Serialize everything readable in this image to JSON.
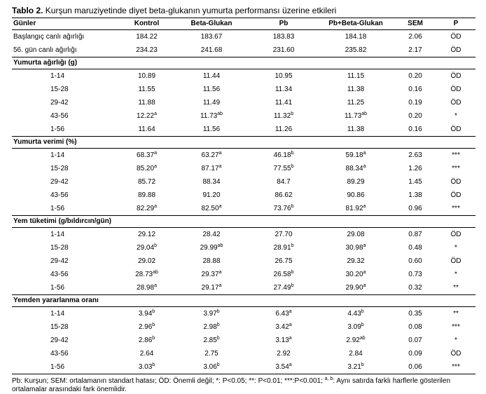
{
  "caption": {
    "bold": "Tablo 2.",
    "text": " Kurşun maruziyetinde diyet beta-glukanın yumurta performansı üzerine etkileri"
  },
  "headers": [
    "Günler",
    "Kontrol",
    "Beta-Glukan",
    "Pb",
    "Pb+Beta-Glukan",
    "SEM",
    "P"
  ],
  "top_rows": [
    {
      "label": "Başlangıç canlı ağırlığı",
      "vals": [
        [
          "184.22",
          ""
        ],
        [
          "183.67",
          ""
        ],
        [
          "183.83",
          ""
        ],
        [
          "184.18",
          ""
        ]
      ],
      "sem": "2.06",
      "p": "ÖD"
    },
    {
      "label": "56. gün canlı ağırlığı",
      "vals": [
        [
          "234.23",
          ""
        ],
        [
          "241.68",
          ""
        ],
        [
          "231.60",
          ""
        ],
        [
          "235.82",
          ""
        ]
      ],
      "sem": "2.17",
      "p": "ÖD"
    }
  ],
  "sections": [
    {
      "title": "Yumurta ağırlığı (g)",
      "rows": [
        {
          "label": "1-14",
          "vals": [
            [
              "10.89",
              ""
            ],
            [
              "11.44",
              ""
            ],
            [
              "10.95",
              ""
            ],
            [
              "11.15",
              ""
            ]
          ],
          "sem": "0.20",
          "p": "ÖD"
        },
        {
          "label": "15-28",
          "vals": [
            [
              "11.55",
              ""
            ],
            [
              "11.56",
              ""
            ],
            [
              "11.34",
              ""
            ],
            [
              "11.38",
              ""
            ]
          ],
          "sem": "0.16",
          "p": "ÖD"
        },
        {
          "label": "29-42",
          "vals": [
            [
              "11.88",
              ""
            ],
            [
              "11.49",
              ""
            ],
            [
              "11.41",
              ""
            ],
            [
              "11.25",
              ""
            ]
          ],
          "sem": "0.19",
          "p": "ÖD"
        },
        {
          "label": "43-56",
          "vals": [
            [
              "12.22",
              "a"
            ],
            [
              "11.73",
              "ab"
            ],
            [
              "11.32",
              "b"
            ],
            [
              "11.73",
              "ab"
            ]
          ],
          "sem": "0.20",
          "p": "*"
        },
        {
          "label": "1-56",
          "vals": [
            [
              "11.64",
              ""
            ],
            [
              "11.56",
              ""
            ],
            [
              "11.26",
              ""
            ],
            [
              "11.38",
              ""
            ]
          ],
          "sem": "0.16",
          "p": "ÖD"
        }
      ]
    },
    {
      "title": "Yumurta verimi (%)",
      "rows": [
        {
          "label": "1-14",
          "vals": [
            [
              "68.37",
              "a"
            ],
            [
              "63.27",
              "a"
            ],
            [
              "46.18",
              "b"
            ],
            [
              "59.18",
              "a"
            ]
          ],
          "sem": "2.63",
          "p": "***"
        },
        {
          "label": "15-28",
          "vals": [
            [
              "85.20",
              "a"
            ],
            [
              "87.17",
              "a"
            ],
            [
              "77.55",
              "b"
            ],
            [
              "88.34",
              "a"
            ]
          ],
          "sem": "1.26",
          "p": "***"
        },
        {
          "label": "29-42",
          "vals": [
            [
              "85.72",
              ""
            ],
            [
              "88.34",
              ""
            ],
            [
              "84.7",
              ""
            ],
            [
              "89.29",
              ""
            ]
          ],
          "sem": "1.45",
          "p": "ÖD"
        },
        {
          "label": "43-56",
          "vals": [
            [
              "89.88",
              ""
            ],
            [
              "91.20",
              ""
            ],
            [
              "86.62",
              ""
            ],
            [
              "90.86",
              ""
            ]
          ],
          "sem": "1.38",
          "p": "ÖD"
        },
        {
          "label": "1-56",
          "vals": [
            [
              "82.29",
              "a"
            ],
            [
              "82.50",
              "a"
            ],
            [
              "73.76",
              "b"
            ],
            [
              "81.92",
              "a"
            ]
          ],
          "sem": "0.96",
          "p": "***"
        }
      ]
    },
    {
      "title": "Yem tüketimi (g/bıldırcın/gün)",
      "rows": [
        {
          "label": "1-14",
          "vals": [
            [
              "29.12",
              ""
            ],
            [
              "28.42",
              ""
            ],
            [
              "27.70",
              ""
            ],
            [
              "29.08",
              ""
            ]
          ],
          "sem": "0.87",
          "p": "ÖD"
        },
        {
          "label": "15-28",
          "vals": [
            [
              "29.04",
              "b"
            ],
            [
              "29.99",
              "ab"
            ],
            [
              "28.91",
              "b"
            ],
            [
              "30.98",
              "a"
            ]
          ],
          "sem": "0.48",
          "p": "*"
        },
        {
          "label": "29-42",
          "vals": [
            [
              "29.02",
              ""
            ],
            [
              "28.88",
              ""
            ],
            [
              "26.75",
              ""
            ],
            [
              "29.32",
              ""
            ]
          ],
          "sem": "0.60",
          "p": "ÖD"
        },
        {
          "label": "43-56",
          "vals": [
            [
              "28.73",
              "ab"
            ],
            [
              "29.37",
              "a"
            ],
            [
              "26.58",
              "b"
            ],
            [
              "30.20",
              "a"
            ]
          ],
          "sem": "0.73",
          "p": "*"
        },
        {
          "label": "1-56",
          "vals": [
            [
              "28.98",
              "a"
            ],
            [
              "29.17",
              "a"
            ],
            [
              "27.49",
              "b"
            ],
            [
              "29.90",
              "a"
            ]
          ],
          "sem": "0.32",
          "p": "**"
        }
      ]
    },
    {
      "title": "Yemden yararlanma oranı",
      "rows": [
        {
          "label": "1-14",
          "vals": [
            [
              "3.94",
              "b"
            ],
            [
              "3.97",
              "b"
            ],
            [
              "6.43",
              "a"
            ],
            [
              "4.43",
              "b"
            ]
          ],
          "sem": "0.35",
          "p": "**"
        },
        {
          "label": "15-28",
          "vals": [
            [
              "2.96",
              "b"
            ],
            [
              "2.98",
              "b"
            ],
            [
              "3.42",
              "a"
            ],
            [
              "3.09",
              "b"
            ]
          ],
          "sem": "0.08",
          "p": "***"
        },
        {
          "label": "29-42",
          "vals": [
            [
              "2.86",
              "b"
            ],
            [
              "2.85",
              "b"
            ],
            [
              "3.13",
              "a"
            ],
            [
              "2.92",
              "ab"
            ]
          ],
          "sem": "0.07",
          "p": "*"
        },
        {
          "label": "43-56",
          "vals": [
            [
              "2.64",
              ""
            ],
            [
              "2.75",
              ""
            ],
            [
              "2.92",
              ""
            ],
            [
              "2.84",
              ""
            ]
          ],
          "sem": "0.09",
          "p": "ÖD"
        },
        {
          "label": "1-56",
          "vals": [
            [
              "3.03",
              "b"
            ],
            [
              "3.06",
              "b"
            ],
            [
              "3.54",
              "a"
            ],
            [
              "3.21",
              "b"
            ]
          ],
          "sem": "0.06",
          "p": "***"
        }
      ]
    }
  ],
  "footnote": {
    "text1": "Pb: Kurşun; SEM: ortalamanın standart hatası; ÖD: Önemli değil; *: P<0.05; **: P<0.01; ***:P<0.001; ",
    "sup": "a, b",
    "text2": ": Aynı satırda farklı harflerle gösterilen ortalamalar arasındaki fark önemlidir."
  }
}
